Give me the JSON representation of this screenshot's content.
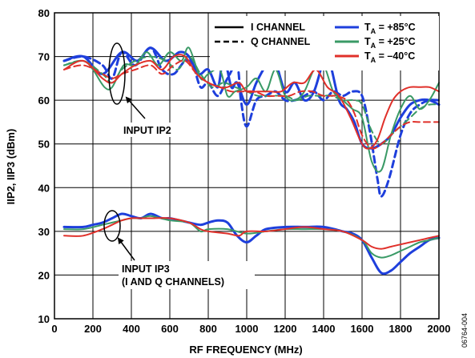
{
  "chart_data": {
    "type": "line",
    "xlabel": "RF FREQUENCY (MHz)",
    "ylabel": "IIP2, IIP3 (dBm)",
    "xlim": [
      0,
      2000
    ],
    "ylim": [
      10,
      80
    ],
    "xticks": [
      "0",
      "200",
      "400",
      "600",
      "800",
      "1000",
      "1200",
      "1400",
      "1600",
      "1800",
      "2000"
    ],
    "yticks": [
      "10",
      "20",
      "30",
      "40",
      "50",
      "60",
      "70",
      "80"
    ],
    "grid": true,
    "legend_position": "top-right",
    "legend": {
      "styles": [
        {
          "label": "I CHANNEL",
          "dash": "solid"
        },
        {
          "label": "Q CHANNEL",
          "dash": "dashed"
        }
      ],
      "temps": [
        {
          "label": "+85°C",
          "color": "#1e3fdc"
        },
        {
          "label": "+25°C",
          "color": "#3a9a66"
        },
        {
          "label": "–40°C",
          "color": "#e0302a"
        }
      ],
      "temp_prefix": "T",
      "temp_sub": "A",
      "temp_eq": " = "
    },
    "annotations": {
      "ip2": "INPUT IP2",
      "ip3_line1": "INPUT IP3",
      "ip3_line2": "(I AND Q CHANNELS)"
    },
    "figure_id": "06764-004",
    "series": [
      {
        "group": "IIP2",
        "channel": "I",
        "temp": "+85°C",
        "color": "#1e3fdc",
        "dash": "solid",
        "x": [
          50,
          150,
          250,
          350,
          430,
          500,
          580,
          650,
          700,
          750,
          800,
          850,
          880,
          920,
          950,
          1000,
          1050,
          1100,
          1140,
          1200,
          1250,
          1300,
          1350,
          1400,
          1430,
          1480,
          1520,
          1560,
          1600,
          1650,
          1700,
          1750,
          1800,
          1850,
          1900,
          1950,
          2000
        ],
        "y": [
          69,
          70,
          66,
          71,
          69,
          72,
          69,
          71,
          70,
          66,
          67,
          63,
          70,
          63,
          64,
          59,
          64,
          68,
          70,
          62,
          64,
          60,
          62,
          69,
          69,
          60,
          58,
          55,
          50,
          49,
          50,
          52,
          56,
          59,
          60,
          60,
          59
        ]
      },
      {
        "group": "IIP2",
        "channel": "Q",
        "temp": "+85°C",
        "color": "#1e3fdc",
        "dash": "dashed",
        "x": [
          50,
          150,
          250,
          300,
          350,
          420,
          500,
          560,
          620,
          680,
          720,
          760,
          800,
          850,
          900,
          950,
          970,
          1000,
          1050,
          1100,
          1150,
          1200,
          1250,
          1300,
          1350,
          1400,
          1450,
          1500,
          1550,
          1600,
          1640,
          1680,
          1700,
          1740,
          1800,
          1850,
          1900,
          1950,
          2000
        ],
        "y": [
          69,
          70,
          68,
          65,
          71,
          68,
          72,
          67,
          66,
          69,
          68,
          63,
          64,
          61,
          65,
          68,
          60,
          54,
          60,
          61,
          62,
          60,
          60,
          61,
          62,
          60,
          62,
          61,
          62,
          61,
          53,
          42,
          38,
          42,
          52,
          57,
          59,
          60,
          60
        ]
      },
      {
        "group": "IIP2",
        "channel": "I",
        "temp": "+25°C",
        "color": "#3a9a66",
        "dash": "solid",
        "x": [
          50,
          150,
          200,
          260,
          300,
          360,
          420,
          480,
          540,
          600,
          660,
          700,
          760,
          800,
          860,
          900,
          940,
          1000,
          1050,
          1100,
          1150,
          1200,
          1250,
          1300,
          1350,
          1400,
          1450,
          1500,
          1550,
          1600,
          1650,
          1700,
          1750,
          1800,
          1850,
          1900,
          1950,
          2000
        ],
        "y": [
          68,
          69,
          67,
          63,
          63,
          68,
          68,
          71,
          68,
          71,
          69,
          72,
          65,
          66,
          67,
          61,
          62,
          63,
          65,
          62,
          67,
          61,
          60,
          62,
          67,
          68,
          62,
          60,
          58,
          56,
          46,
          44,
          52,
          58,
          61,
          58,
          60,
          64
        ]
      },
      {
        "group": "IIP2",
        "channel": "Q",
        "temp": "+25°C",
        "color": "#3a9a66",
        "dash": "dashed",
        "x": [
          50,
          150,
          250,
          300,
          350,
          420,
          500,
          580,
          640,
          700,
          760,
          820,
          880,
          940,
          1000,
          1060,
          1120,
          1200,
          1260,
          1320,
          1380,
          1440,
          1500,
          1560,
          1600,
          1650,
          1700,
          1750,
          1800,
          1850,
          1900,
          1950,
          2000
        ],
        "y": [
          68,
          69,
          66,
          64,
          67,
          69,
          70,
          69,
          67,
          70,
          66,
          63,
          64,
          63,
          62,
          61,
          61,
          61,
          60,
          61,
          61,
          61,
          60,
          60,
          59,
          53,
          50,
          52,
          54,
          56,
          58,
          59,
          59
        ]
      },
      {
        "group": "IIP2",
        "channel": "I",
        "temp": "–40°C",
        "color": "#e0302a",
        "dash": "solid",
        "x": [
          50,
          150,
          250,
          300,
          350,
          420,
          500,
          560,
          620,
          680,
          740,
          800,
          860,
          900,
          960,
          1000,
          1060,
          1120,
          1180,
          1240,
          1300,
          1360,
          1420,
          1480,
          1540,
          1600,
          1640,
          1680,
          1720,
          1760,
          1800,
          1850,
          1900,
          1950,
          2000
        ],
        "y": [
          67,
          69,
          65,
          64,
          66,
          68,
          69,
          67,
          70,
          70,
          66,
          64,
          63,
          63,
          64,
          62,
          62,
          62,
          62,
          64,
          64,
          67,
          63,
          61,
          56,
          50,
          49,
          51,
          56,
          60,
          62,
          63,
          63,
          63,
          62
        ]
      },
      {
        "group": "IIP2",
        "channel": "Q",
        "temp": "–40°C",
        "color": "#e0302a",
        "dash": "dashed",
        "x": [
          50,
          150,
          250,
          300,
          350,
          420,
          500,
          560,
          620,
          680,
          740,
          800,
          860,
          920,
          980,
          1040,
          1100,
          1160,
          1220,
          1280,
          1340,
          1400,
          1460,
          1520,
          1560,
          1600,
          1650,
          1700,
          1750,
          1800,
          1850,
          1900,
          1950,
          2000
        ],
        "y": [
          67,
          68,
          66,
          65,
          66,
          67,
          68,
          66,
          68,
          69,
          66,
          64,
          63,
          62,
          62,
          62,
          61,
          61,
          61,
          62,
          62,
          61,
          61,
          60,
          57,
          52,
          49,
          50,
          52,
          54,
          55,
          55,
          55,
          55
        ]
      },
      {
        "group": "IIP3",
        "channel": "I+Q",
        "temp": "+85°C",
        "color": "#1e3fdc",
        "dash": "solid",
        "x": [
          50,
          150,
          200,
          250,
          300,
          350,
          400,
          450,
          500,
          560,
          600,
          650,
          700,
          760,
          800,
          850,
          900,
          950,
          1000,
          1050,
          1100,
          1200,
          1300,
          1400,
          1500,
          1550,
          1600,
          1650,
          1700,
          1750,
          1800,
          1850,
          1900,
          1950,
          2000
        ],
        "y": [
          31,
          31,
          31.5,
          32,
          33,
          34,
          33.5,
          33,
          34,
          33,
          33,
          32.5,
          32,
          31.5,
          32,
          32.5,
          32,
          29,
          27.5,
          29,
          30.5,
          31,
          31,
          31,
          30,
          29.5,
          28,
          24,
          20.5,
          21,
          23,
          25,
          26.5,
          28,
          28.5
        ]
      },
      {
        "group": "IIP3",
        "channel": "I+Q",
        "temp": "+25°C",
        "color": "#3a9a66",
        "dash": "solid",
        "x": [
          50,
          150,
          250,
          300,
          350,
          400,
          450,
          500,
          600,
          700,
          760,
          800,
          900,
          1000,
          1100,
          1200,
          1300,
          1400,
          1500,
          1600,
          1650,
          1700,
          1750,
          1800,
          1850,
          1900,
          1950,
          2000
        ],
        "y": [
          30.5,
          30.5,
          31.5,
          32,
          32.5,
          33,
          33,
          33.5,
          32.5,
          32,
          30,
          30.5,
          30.5,
          29.5,
          30,
          30.5,
          30.5,
          30.5,
          30,
          28,
          25,
          24,
          24.5,
          25.5,
          26.5,
          27.5,
          28,
          28.5
        ]
      },
      {
        "group": "IIP3",
        "channel": "I+Q",
        "temp": "–40°C",
        "color": "#e0302a",
        "dash": "solid",
        "x": [
          50,
          150,
          250,
          300,
          350,
          400,
          450,
          500,
          600,
          700,
          760,
          800,
          900,
          960,
          1000,
          1100,
          1200,
          1300,
          1400,
          1500,
          1600,
          1650,
          1700,
          1750,
          1800,
          1850,
          1900,
          1950,
          2000
        ],
        "y": [
          29,
          29,
          30.5,
          31.5,
          32.5,
          33,
          33,
          33,
          33,
          32,
          30.5,
          30,
          29.5,
          29,
          30,
          30,
          30.5,
          31,
          30.5,
          30,
          28,
          26.5,
          26,
          26.5,
          27,
          27.5,
          28,
          28.5,
          29
        ]
      }
    ]
  }
}
